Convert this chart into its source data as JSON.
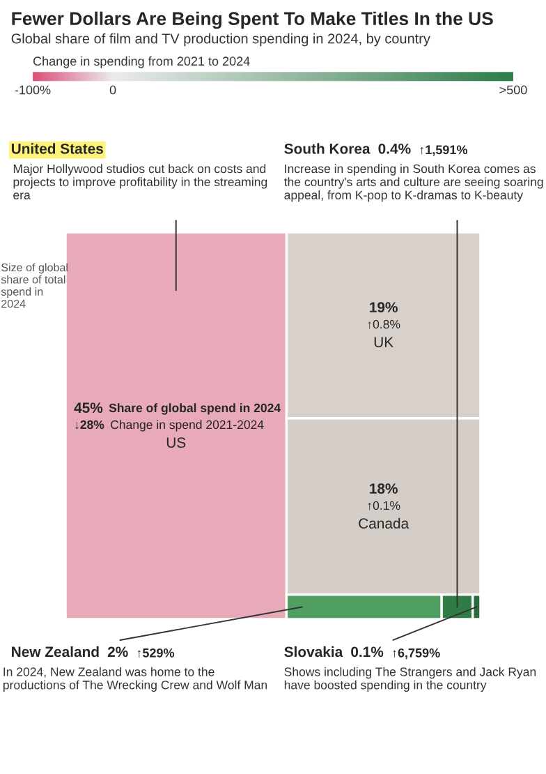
{
  "chart_data": {
    "type": "other",
    "title": "Fewer Dollars Are Being Spent To Make Titles In the US",
    "subtitle": "Global share of film and TV production spending in 2024, by country",
    "clabel": "Change in spending from 2021 to 2024",
    "categories": [
      "US",
      "UK",
      "Canada",
      "New Zealand",
      "South Korea",
      "Slovakia"
    ],
    "values": [
      45,
      19,
      18,
      2,
      0.4,
      0.1
    ],
    "colors": [
      "#e8aab8",
      "#d8d1cb",
      "#d5cec8",
      "#4f9e62",
      "#2f7d45",
      "#2a6b3c"
    ],
    "value_labels": [
      "45%",
      "19%",
      "18%",
      "2%",
      "0.4%",
      "0.1%"
    ],
    "annotations": [
      "Size of global share of total spend in 2024",
      "Share of global spend in 2024",
      "Change in spend 2021-2024",
      "-100%",
      "0",
      ">500",
      {
        "text": "↓28%",
        "x": "US"
      },
      {
        "text": "United States",
        "x": "US"
      },
      {
        "text": "Major Hollywood studios cut back on costs and projects to improve profitability in the streaming era",
        "x": "US"
      },
      {
        "text": "↑0.8%",
        "x": "UK"
      },
      {
        "text": "↑0.1%",
        "x": "Canada"
      },
      {
        "text": "↑1,591%",
        "x": "South Korea"
      },
      {
        "text": "Increase in spending in South Korea comes as the country's arts and culture are seeing soaring appeal, from K-pop to K-dramas to K-beauty",
        "x": "South Korea"
      },
      {
        "text": "↑529%",
        "x": "New Zealand"
      },
      {
        "text": "In 2024, New Zealand was home to the productions of The Wrecking Crew and Wolf Man",
        "x": "New Zealand"
      },
      {
        "text": "↑6,759%",
        "x": "Slovakia"
      },
      {
        "text": "Shows including The Strangers and Jack Ryan have boosted spending in the country",
        "x": "Slovakia"
      }
    ]
  }
}
